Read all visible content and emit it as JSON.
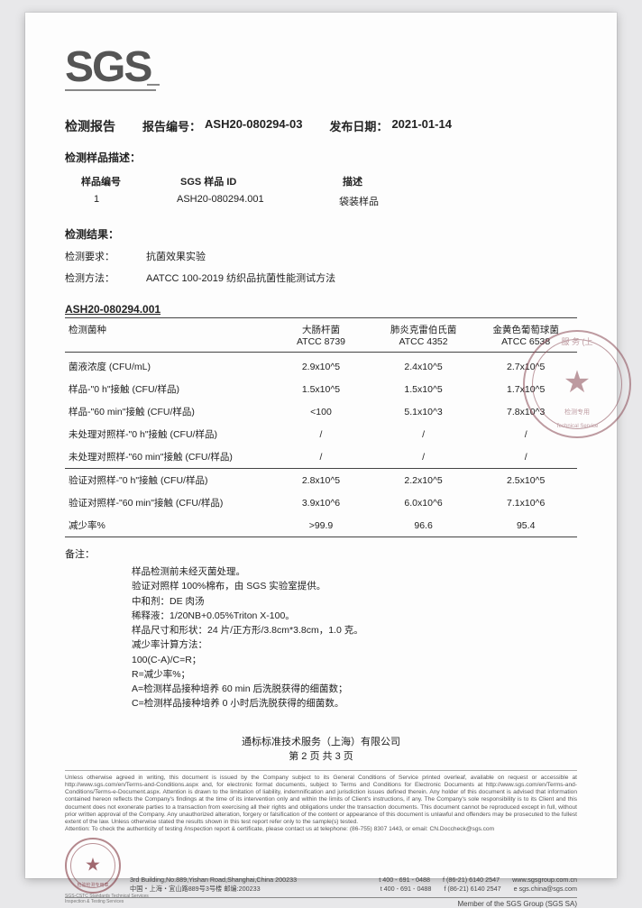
{
  "logo_text": "SGS",
  "header": {
    "report_title": "检测报告",
    "report_no_label": "报告编号：",
    "report_no": "ASH20-080294-03",
    "issue_date_label": "发布日期：",
    "issue_date": "2021-01-14"
  },
  "sample_desc": {
    "title": "检测样品描述：",
    "col_sample_no": "样品编号",
    "col_sgs_id": "SGS 样品 ID",
    "col_desc": "描述",
    "row": {
      "no": "1",
      "sgs_id": "ASH20-080294.001",
      "desc": "袋装样品"
    }
  },
  "result_meta": {
    "title": "检测结果：",
    "req_label": "检测要求：",
    "req_value": "抗菌效果实验",
    "method_label": "检测方法：",
    "method_value": "AATCC 100-2019 纺织品抗菌性能测试方法"
  },
  "results": {
    "spec_id": "ASH20-080294.001",
    "param_header": "检测菌种",
    "bacteria": [
      {
        "name": "大肠杆菌",
        "atcc": "ATCC 8739"
      },
      {
        "name": "肺炎克雷伯氏菌",
        "atcc": "ATCC 4352"
      },
      {
        "name": "金黄色葡萄球菌",
        "atcc": "ATCC 6538"
      }
    ],
    "rows": [
      {
        "param": "菌液浓度 (CFU/mL)",
        "v": [
          "2.9x10^5",
          "2.4x10^5",
          "2.7x10^5"
        ]
      },
      {
        "param": "样品-\"0 h\"接触 (CFU/样品)",
        "v": [
          "1.5x10^5",
          "1.5x10^5",
          "1.7x10^5"
        ]
      },
      {
        "param": "样品-\"60 min\"接触 (CFU/样品)",
        "v": [
          "<100",
          "5.1x10^3",
          "7.8x10^3"
        ]
      },
      {
        "param": "未处理对照样-\"0 h\"接触 (CFU/样品)",
        "v": [
          "/",
          "/",
          "/"
        ]
      },
      {
        "param": "未处理对照样-\"60 min\"接触 (CFU/样品)",
        "v": [
          "/",
          "/",
          "/"
        ]
      },
      {
        "param": "验证对照样-\"0 h\"接触 (CFU/样品)",
        "v": [
          "2.8x10^5",
          "2.2x10^5",
          "2.5x10^5"
        ]
      },
      {
        "param": "验证对照样-\"60 min\"接触 (CFU/样品)",
        "v": [
          "3.9x10^6",
          "6.0x10^6",
          "7.1x10^6"
        ]
      },
      {
        "param": "减少率%",
        "v": [
          ">99.9",
          "96.6",
          "95.4"
        ]
      }
    ]
  },
  "notes": {
    "title": "备注：",
    "lines": [
      "样品检测前未经灭菌处理。",
      "验证对照样 100%棉布，由 SGS 实验室提供。",
      "中和剂：DE 肉汤",
      "稀释液：1/20NB+0.05%Triton X-100。",
      "样品尺寸和形状：24 片/正方形/3.8cm*3.8cm，1.0 克。",
      "减少率计算方法：",
      "100(C-A)/C=R；",
      "R=减少率%；",
      "A=检测样品接种培养 60 min 后洗脱获得的细菌数；",
      "C=检测样品接种培养 0 小时后洗脱获得的细菌数。"
    ]
  },
  "company": {
    "name": "通标标准技术服务（上海）有限公司",
    "page": "第 2 页 共 3 页"
  },
  "legal": "Unless otherwise agreed in writing, this document is issued by the Company subject to its General Conditions of Service printed overleaf, available on request or accessible at http://www.sgs.com/en/Terms-and-Conditions.aspx and, for electronic format documents, subject to Terms and Conditions for Electronic Documents at http://www.sgs.com/en/Terms-and-Conditions/Terms-e-Document.aspx. Attention is drawn to the limitation of liability, indemnification and jurisdiction issues defined therein. Any holder of this document is advised that information contained hereon reflects the Company's findings at the time of its intervention only and within the limits of Client's instructions, if any. The Company's sole responsibility is to its Client and this document does not exonerate parties to a transaction from exercising all their rights and obligations under the transaction documents. This document cannot be reproduced except in full, without prior written approval of the Company. Any unauthorized alteration, forgery or falsification of the content or appearance of this document is unlawful and offenders may be prosecuted to the fullest extent of the law. Unless otherwise stated the results shown in this test report refer only to the sample(s) tested.",
  "attention": "Attention: To check the authenticity of testing /inspection report & certificate, please contact us at telephone: (86-755) 8307 1443, or email: CN.Doccheck@sgs.com",
  "address": {
    "line_en": "3rd Building,No.889,Yishan Road,Shanghai,China  200233",
    "line_cn": "中国・上海・宜山路889号3号楼         邮编:200233",
    "tel1": "t 400 - 691 - 0488",
    "tel2": "t 400 - 691 - 0488",
    "fax1": "f (86-21) 6140 2547",
    "fax2": "f (86-21) 6140 2547",
    "web": "www.sgsgroup.com.cn",
    "email": "e sgs.china@sgs.com"
  },
  "member": "Member of the SGS Group (SGS SA)",
  "stamp": {
    "arc_top": "服 务 (上",
    "label_low": "检测专用",
    "sub": "Technical Service",
    "footer_label": "检验检测专用章",
    "footer_sub1": "SGS-CSTC Standards Technical Services",
    "footer_sub2": "Inspection & Testing Services"
  }
}
